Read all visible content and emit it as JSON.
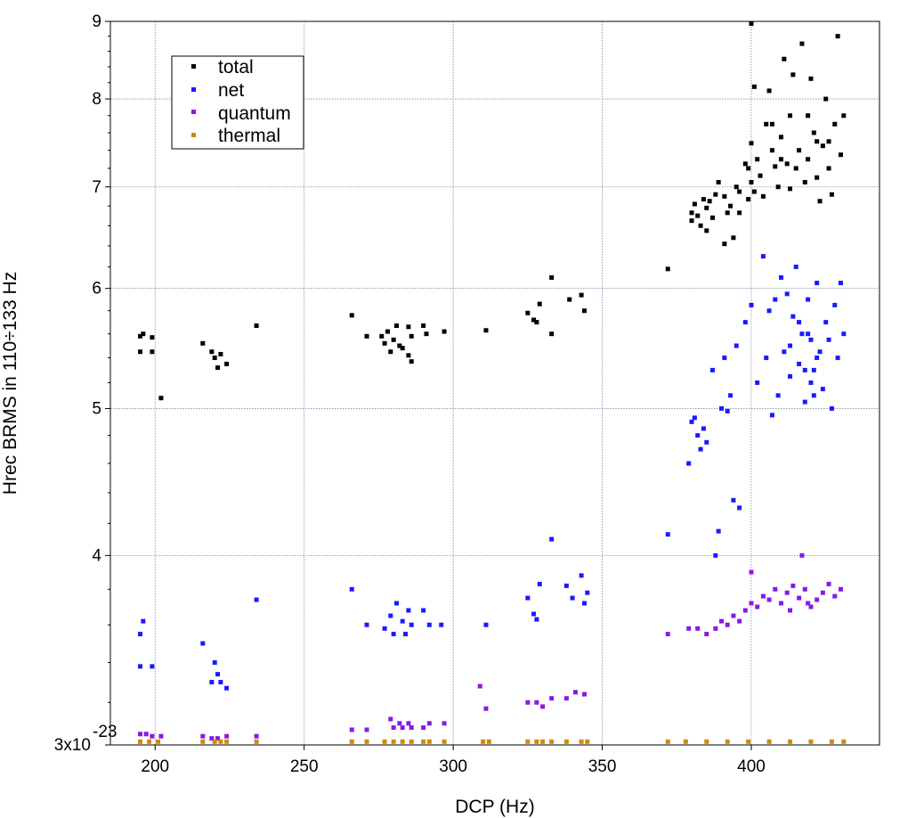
{
  "colors": {
    "total": "#000000",
    "net": "#1a1aff",
    "quantum": "#8a18e8",
    "thermal": "#d08a00",
    "grid": "#7a8aa8"
  },
  "chart_data": {
    "type": "scatter",
    "xlabel": "DCP (Hz)",
    "ylabel": "Hrec BRMS in 110÷133 Hz",
    "xlim": [
      185,
      443
    ],
    "ylim": [
      3.0,
      9.0
    ],
    "yscale": "log",
    "grid": true,
    "legend_position": "top-left",
    "x_ticks": [
      200,
      250,
      300,
      350,
      400
    ],
    "x_tick_labels": [
      "200",
      "250",
      "300",
      "350",
      "400"
    ],
    "y_ticks": [
      3,
      4,
      5,
      6,
      7,
      8,
      9
    ],
    "y_tick_labels": [
      "3x10",
      "4",
      "5",
      "6",
      "7",
      "8",
      "9"
    ],
    "y_tick_exponent": "-23",
    "series": [
      {
        "name": "total",
        "color": "#000000",
        "points": [
          [
            195,
            5.58
          ],
          [
            196,
            5.6
          ],
          [
            195,
            5.45
          ],
          [
            199,
            5.57
          ],
          [
            199,
            5.45
          ],
          [
            202,
            5.08
          ],
          [
            216,
            5.52
          ],
          [
            219,
            5.45
          ],
          [
            220,
            5.4
          ],
          [
            221,
            5.32
          ],
          [
            222,
            5.43
          ],
          [
            224,
            5.35
          ],
          [
            234,
            5.67
          ],
          [
            266,
            5.76
          ],
          [
            271,
            5.58
          ],
          [
            276,
            5.58
          ],
          [
            277,
            5.52
          ],
          [
            278,
            5.62
          ],
          [
            279,
            5.45
          ],
          [
            280,
            5.55
          ],
          [
            281,
            5.67
          ],
          [
            282,
            5.5
          ],
          [
            283,
            5.48
          ],
          [
            285,
            5.66
          ],
          [
            285,
            5.42
          ],
          [
            286,
            5.58
          ],
          [
            286,
            5.37
          ],
          [
            290,
            5.67
          ],
          [
            291,
            5.6
          ],
          [
            297,
            5.62
          ],
          [
            311,
            5.63
          ],
          [
            325,
            5.78
          ],
          [
            327,
            5.72
          ],
          [
            328,
            5.7
          ],
          [
            329,
            5.86
          ],
          [
            333,
            6.1
          ],
          [
            333,
            5.6
          ],
          [
            339,
            5.9
          ],
          [
            343,
            5.94
          ],
          [
            344,
            5.8
          ],
          [
            372,
            6.18
          ],
          [
            380,
            6.73
          ],
          [
            380,
            6.65
          ],
          [
            381,
            6.82
          ],
          [
            382,
            6.7
          ],
          [
            383,
            6.6
          ],
          [
            384,
            6.87
          ],
          [
            385,
            6.78
          ],
          [
            385,
            6.55
          ],
          [
            386,
            6.85
          ],
          [
            387,
            6.68
          ],
          [
            388,
            6.92
          ],
          [
            389,
            7.05
          ],
          [
            391,
            6.42
          ],
          [
            391,
            6.9
          ],
          [
            392,
            6.73
          ],
          [
            393,
            6.8
          ],
          [
            394,
            6.48
          ],
          [
            395,
            7.0
          ],
          [
            396,
            6.95
          ],
          [
            396,
            6.73
          ],
          [
            398,
            7.25
          ],
          [
            399,
            6.87
          ],
          [
            400,
            7.48
          ],
          [
            400,
            7.05
          ],
          [
            401,
            6.95
          ],
          [
            402,
            7.3
          ],
          [
            403,
            7.12
          ],
          [
            404,
            6.9
          ],
          [
            405,
            7.7
          ],
          [
            406,
            8.1
          ],
          [
            407,
            7.4
          ],
          [
            408,
            7.22
          ],
          [
            409,
            7.0
          ],
          [
            410,
            7.55
          ],
          [
            411,
            8.5
          ],
          [
            412,
            7.25
          ],
          [
            413,
            7.8
          ],
          [
            414,
            8.3
          ],
          [
            416,
            7.4
          ],
          [
            417,
            8.7
          ],
          [
            418,
            7.05
          ],
          [
            419,
            7.3
          ],
          [
            420,
            8.25
          ],
          [
            421,
            7.6
          ],
          [
            422,
            7.1
          ],
          [
            423,
            6.85
          ],
          [
            424,
            7.45
          ],
          [
            425,
            8.0
          ],
          [
            426,
            7.2
          ],
          [
            427,
            6.92
          ],
          [
            428,
            7.7
          ],
          [
            429,
            8.8
          ],
          [
            430,
            7.35
          ],
          [
            431,
            7.8
          ],
          [
            400,
            8.97
          ],
          [
            401,
            8.15
          ],
          [
            399,
            7.2
          ],
          [
            407,
            7.7
          ],
          [
            415,
            7.2
          ],
          [
            422,
            7.5
          ],
          [
            413,
            6.98
          ],
          [
            419,
            7.8
          ],
          [
            410,
            7.3
          ],
          [
            426,
            7.5
          ]
        ]
      },
      {
        "name": "net",
        "color": "#1a1aff",
        "points": [
          [
            195,
            3.55
          ],
          [
            196,
            3.62
          ],
          [
            195,
            3.38
          ],
          [
            199,
            3.38
          ],
          [
            216,
            3.5
          ],
          [
            219,
            3.3
          ],
          [
            220,
            3.4
          ],
          [
            221,
            3.34
          ],
          [
            222,
            3.3
          ],
          [
            224,
            3.27
          ],
          [
            234,
            3.74
          ],
          [
            266,
            3.8
          ],
          [
            271,
            3.6
          ],
          [
            277,
            3.58
          ],
          [
            279,
            3.65
          ],
          [
            280,
            3.55
          ],
          [
            281,
            3.72
          ],
          [
            283,
            3.62
          ],
          [
            284,
            3.55
          ],
          [
            285,
            3.68
          ],
          [
            286,
            3.6
          ],
          [
            290,
            3.68
          ],
          [
            292,
            3.6
          ],
          [
            296,
            3.6
          ],
          [
            311,
            3.6
          ],
          [
            325,
            3.75
          ],
          [
            327,
            3.66
          ],
          [
            328,
            3.63
          ],
          [
            329,
            3.83
          ],
          [
            333,
            4.1
          ],
          [
            338,
            3.82
          ],
          [
            340,
            3.75
          ],
          [
            343,
            3.88
          ],
          [
            344,
            3.72
          ],
          [
            345,
            3.78
          ],
          [
            372,
            4.13
          ],
          [
            379,
            4.6
          ],
          [
            380,
            4.9
          ],
          [
            381,
            4.93
          ],
          [
            382,
            4.8
          ],
          [
            383,
            4.7
          ],
          [
            384,
            4.85
          ],
          [
            385,
            4.75
          ],
          [
            387,
            5.3
          ],
          [
            388,
            4.0
          ],
          [
            389,
            4.15
          ],
          [
            390,
            5.0
          ],
          [
            391,
            5.4
          ],
          [
            392,
            4.98
          ],
          [
            393,
            5.1
          ],
          [
            394,
            4.35
          ],
          [
            395,
            5.5
          ],
          [
            396,
            4.3
          ],
          [
            398,
            5.7
          ],
          [
            400,
            5.85
          ],
          [
            402,
            5.2
          ],
          [
            404,
            6.3
          ],
          [
            405,
            5.4
          ],
          [
            406,
            5.8
          ],
          [
            407,
            4.95
          ],
          [
            408,
            5.9
          ],
          [
            409,
            5.1
          ],
          [
            410,
            6.1
          ],
          [
            411,
            5.45
          ],
          [
            412,
            5.95
          ],
          [
            413,
            5.25
          ],
          [
            414,
            5.75
          ],
          [
            415,
            6.2
          ],
          [
            416,
            5.35
          ],
          [
            417,
            5.6
          ],
          [
            418,
            5.05
          ],
          [
            419,
            5.9
          ],
          [
            420,
            5.55
          ],
          [
            421,
            5.3
          ],
          [
            422,
            6.05
          ],
          [
            423,
            5.45
          ],
          [
            424,
            5.15
          ],
          [
            425,
            5.7
          ],
          [
            426,
            5.55
          ],
          [
            427,
            5.0
          ],
          [
            428,
            5.85
          ],
          [
            429,
            5.4
          ],
          [
            430,
            6.05
          ],
          [
            431,
            5.6
          ],
          [
            413,
            5.5
          ],
          [
            418,
            5.3
          ],
          [
            420,
            5.2
          ],
          [
            421,
            5.1
          ],
          [
            422,
            5.4
          ],
          [
            416,
            5.7
          ],
          [
            419,
            5.6
          ]
        ]
      },
      {
        "name": "quantum",
        "color": "#8a18e8",
        "points": [
          [
            195,
            3.05
          ],
          [
            197,
            3.05
          ],
          [
            199,
            3.04
          ],
          [
            202,
            3.04
          ],
          [
            216,
            3.04
          ],
          [
            219,
            3.03
          ],
          [
            221,
            3.03
          ],
          [
            224,
            3.04
          ],
          [
            234,
            3.04
          ],
          [
            266,
            3.07
          ],
          [
            271,
            3.07
          ],
          [
            279,
            3.12
          ],
          [
            280,
            3.08
          ],
          [
            282,
            3.1
          ],
          [
            283,
            3.08
          ],
          [
            285,
            3.1
          ],
          [
            286,
            3.08
          ],
          [
            290,
            3.08
          ],
          [
            292,
            3.1
          ],
          [
            297,
            3.1
          ],
          [
            309,
            3.28
          ],
          [
            311,
            3.17
          ],
          [
            325,
            3.2
          ],
          [
            328,
            3.2
          ],
          [
            330,
            3.18
          ],
          [
            333,
            3.22
          ],
          [
            338,
            3.22
          ],
          [
            341,
            3.25
          ],
          [
            344,
            3.24
          ],
          [
            372,
            3.55
          ],
          [
            379,
            3.58
          ],
          [
            382,
            3.58
          ],
          [
            385,
            3.55
          ],
          [
            388,
            3.58
          ],
          [
            390,
            3.62
          ],
          [
            392,
            3.6
          ],
          [
            394,
            3.65
          ],
          [
            396,
            3.62
          ],
          [
            398,
            3.68
          ],
          [
            400,
            3.72
          ],
          [
            402,
            3.7
          ],
          [
            404,
            3.76
          ],
          [
            406,
            3.74
          ],
          [
            408,
            3.8
          ],
          [
            410,
            3.72
          ],
          [
            412,
            3.78
          ],
          [
            414,
            3.82
          ],
          [
            416,
            3.75
          ],
          [
            418,
            3.8
          ],
          [
            420,
            3.7
          ],
          [
            422,
            3.74
          ],
          [
            424,
            3.78
          ],
          [
            426,
            3.83
          ],
          [
            428,
            3.76
          ],
          [
            430,
            3.8
          ],
          [
            400,
            3.9
          ],
          [
            417,
            4.0
          ],
          [
            413,
            3.68
          ],
          [
            419,
            3.72
          ]
        ]
      },
      {
        "name": "thermal",
        "color": "#d08a00",
        "points": [
          [
            195,
            3.015
          ],
          [
            198,
            3.015
          ],
          [
            201,
            3.015
          ],
          [
            216,
            3.015
          ],
          [
            220,
            3.015
          ],
          [
            222,
            3.015
          ],
          [
            224,
            3.015
          ],
          [
            234,
            3.015
          ],
          [
            266,
            3.015
          ],
          [
            271,
            3.015
          ],
          [
            277,
            3.015
          ],
          [
            280,
            3.015
          ],
          [
            283,
            3.015
          ],
          [
            286,
            3.015
          ],
          [
            290,
            3.015
          ],
          [
            292,
            3.015
          ],
          [
            297,
            3.015
          ],
          [
            310,
            3.015
          ],
          [
            312,
            3.015
          ],
          [
            325,
            3.015
          ],
          [
            328,
            3.015
          ],
          [
            330,
            3.015
          ],
          [
            333,
            3.015
          ],
          [
            338,
            3.015
          ],
          [
            343,
            3.015
          ],
          [
            345,
            3.015
          ],
          [
            372,
            3.015
          ],
          [
            378,
            3.015
          ],
          [
            385,
            3.015
          ],
          [
            392,
            3.015
          ],
          [
            399,
            3.015
          ],
          [
            406,
            3.015
          ],
          [
            413,
            3.015
          ],
          [
            420,
            3.015
          ],
          [
            427,
            3.015
          ],
          [
            431,
            3.015
          ]
        ]
      }
    ]
  }
}
